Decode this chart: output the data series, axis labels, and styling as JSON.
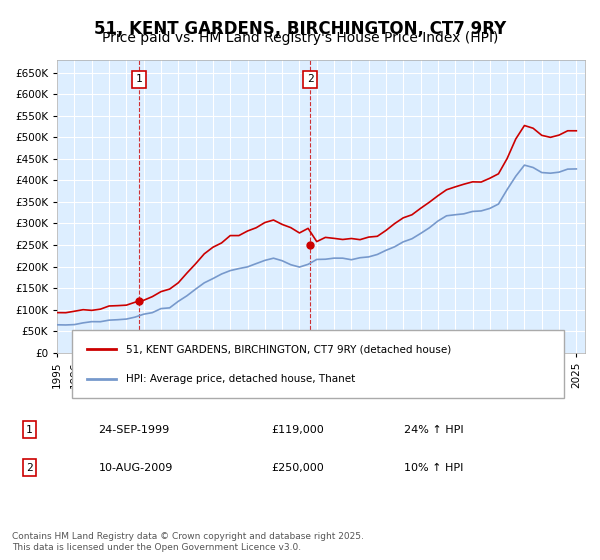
{
  "title": "51, KENT GARDENS, BIRCHINGTON, CT7 9RY",
  "subtitle": "Price paid vs. HM Land Registry's House Price Index (HPI)",
  "ylim": [
    0,
    680000
  ],
  "yticks": [
    0,
    50000,
    100000,
    150000,
    200000,
    250000,
    300000,
    350000,
    400000,
    450000,
    500000,
    550000,
    600000,
    650000
  ],
  "background_color": "#ffffff",
  "plot_bg_color": "#ddeeff",
  "grid_color": "#ffffff",
  "red_color": "#cc0000",
  "blue_color": "#7799cc",
  "title_fontsize": 12,
  "subtitle_fontsize": 10,
  "legend_line1": "51, KENT GARDENS, BIRCHINGTON, CT7 9RY (detached house)",
  "legend_line2": "HPI: Average price, detached house, Thanet",
  "marker1_date": "24-SEP-1999",
  "marker1_price": "£119,000",
  "marker1_hpi": "24% ↑ HPI",
  "marker1_year": 1999.73,
  "marker1_value": 119000,
  "marker2_date": "10-AUG-2009",
  "marker2_price": "£250,000",
  "marker2_hpi": "10% ↑ HPI",
  "marker2_year": 2009.61,
  "marker2_value": 250000,
  "footer": "Contains HM Land Registry data © Crown copyright and database right 2025.\nThis data is licensed under the Open Government Licence v3.0.",
  "xstart": 1995,
  "xend": 2025.5
}
